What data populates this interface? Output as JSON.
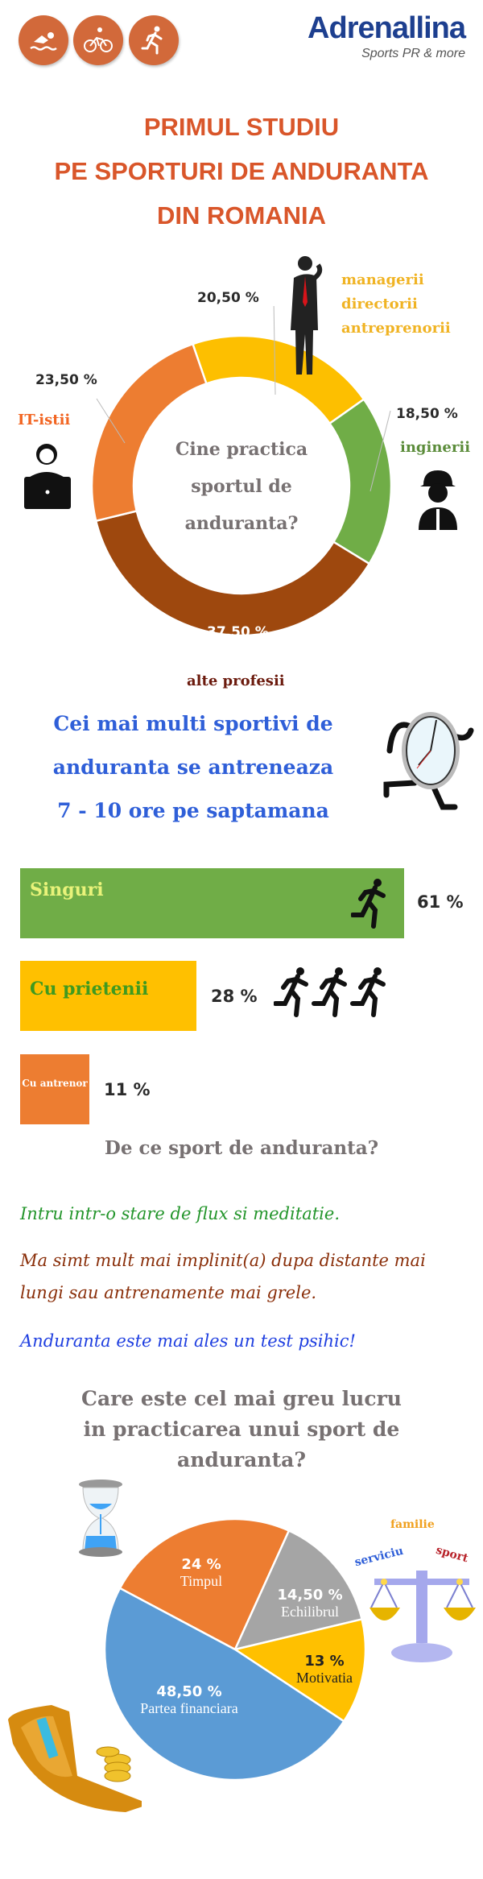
{
  "header": {
    "sport_icons": [
      "swimming-icon",
      "cycling-icon",
      "running-icon"
    ],
    "logo_text": "Adrenallina",
    "logo_tagline": "Sports PR & more",
    "title_lines": [
      "PRIMUL STUDIU",
      "PE SPORTURI DE ANDURANTA",
      "DIN ROMANIA"
    ]
  },
  "colors": {
    "title": "#d9562a",
    "brand": "#1d3f8f",
    "blue_heading": "#2f5fd8",
    "gray_heading": "#777172"
  },
  "professions": {
    "center_lines": [
      "Cine practica",
      "sportul de",
      "anduranta?"
    ],
    "labels": {
      "managers": [
        "managerii",
        "directorii",
        "antreprenorii"
      ],
      "engineers": "inginerii",
      "it": "IT-istii",
      "other": "alte profesii"
    },
    "icons": [
      "businessman-icon",
      "engineer-icon",
      "laptop-user-icon"
    ]
  },
  "training": {
    "heading_lines": [
      "Cei mai multi sportivi de",
      "anduranta se antreneaza",
      "7 - 10 ore pe saptamana"
    ],
    "icons": [
      "running-clock-icon",
      "runner-icon"
    ]
  },
  "why": {
    "heading": "De ce sport de anduranta?",
    "reasons": [
      {
        "text": "Intru intr-o stare de flux si meditatie.",
        "color": "#23952b"
      },
      {
        "text": "Ma simt mult mai implinit(a) dupa distante mai lungi sau antrenamente mai grele.",
        "color": "#8a2f0a"
      },
      {
        "text": "Anduranta este mai ales un test psihic!",
        "color": "#1f3fe0"
      }
    ]
  },
  "hardest": {
    "heading_lines": [
      "Care este cel mai greu lucru",
      "in practicarea unui sport de",
      "anduranta?"
    ],
    "balance_words": {
      "familie": "familie",
      "serviciu": "serviciu",
      "sport": "sport"
    },
    "icons": [
      "hourglass-icon",
      "scales-icon",
      "wallet-icon"
    ]
  },
  "chart_data": [
    {
      "type": "pie",
      "variant": "donut",
      "title": "Cine practica sportul de anduranta?",
      "categories": [
        "managerii directorii antreprenorii",
        "inginerii",
        "alte profesii",
        "IT-istii"
      ],
      "values": [
        20.5,
        18.5,
        37.5,
        23.5
      ],
      "value_labels": [
        "20,50 %",
        "18,50 %",
        "37,50 %",
        "23,50 %"
      ],
      "colors": [
        "#fdbf00",
        "#70ad47",
        "#9e480e",
        "#ed7d31"
      ]
    },
    {
      "type": "bar",
      "orientation": "horizontal",
      "categories": [
        "Singuri",
        "Cu prietenii",
        "Cu antrenor"
      ],
      "values": [
        61,
        28,
        11
      ],
      "value_labels": [
        "61 %",
        "28 %",
        "11 %"
      ],
      "colors": [
        "#70ad47",
        "#ffc000",
        "#ed7d31"
      ],
      "label_colors": [
        "#e9f37a",
        "#3f9a1f",
        "#ffffff"
      ]
    },
    {
      "type": "pie",
      "title": "Care este cel mai greu lucru in practicarea unui sport de anduranta?",
      "categories": [
        "Timpul",
        "Echilibrul",
        "Motivatia",
        "Partea financiara"
      ],
      "values": [
        24,
        14.5,
        13,
        48.5
      ],
      "value_labels": [
        "24 %",
        "14,50 %",
        "13 %",
        "48,50 %"
      ],
      "colors": [
        "#ed7d31",
        "#a5a5a5",
        "#ffc000",
        "#5b9bd5"
      ],
      "label_colors": [
        "#ffffff",
        "#ffffff",
        "#222222",
        "#ffffff"
      ]
    }
  ]
}
